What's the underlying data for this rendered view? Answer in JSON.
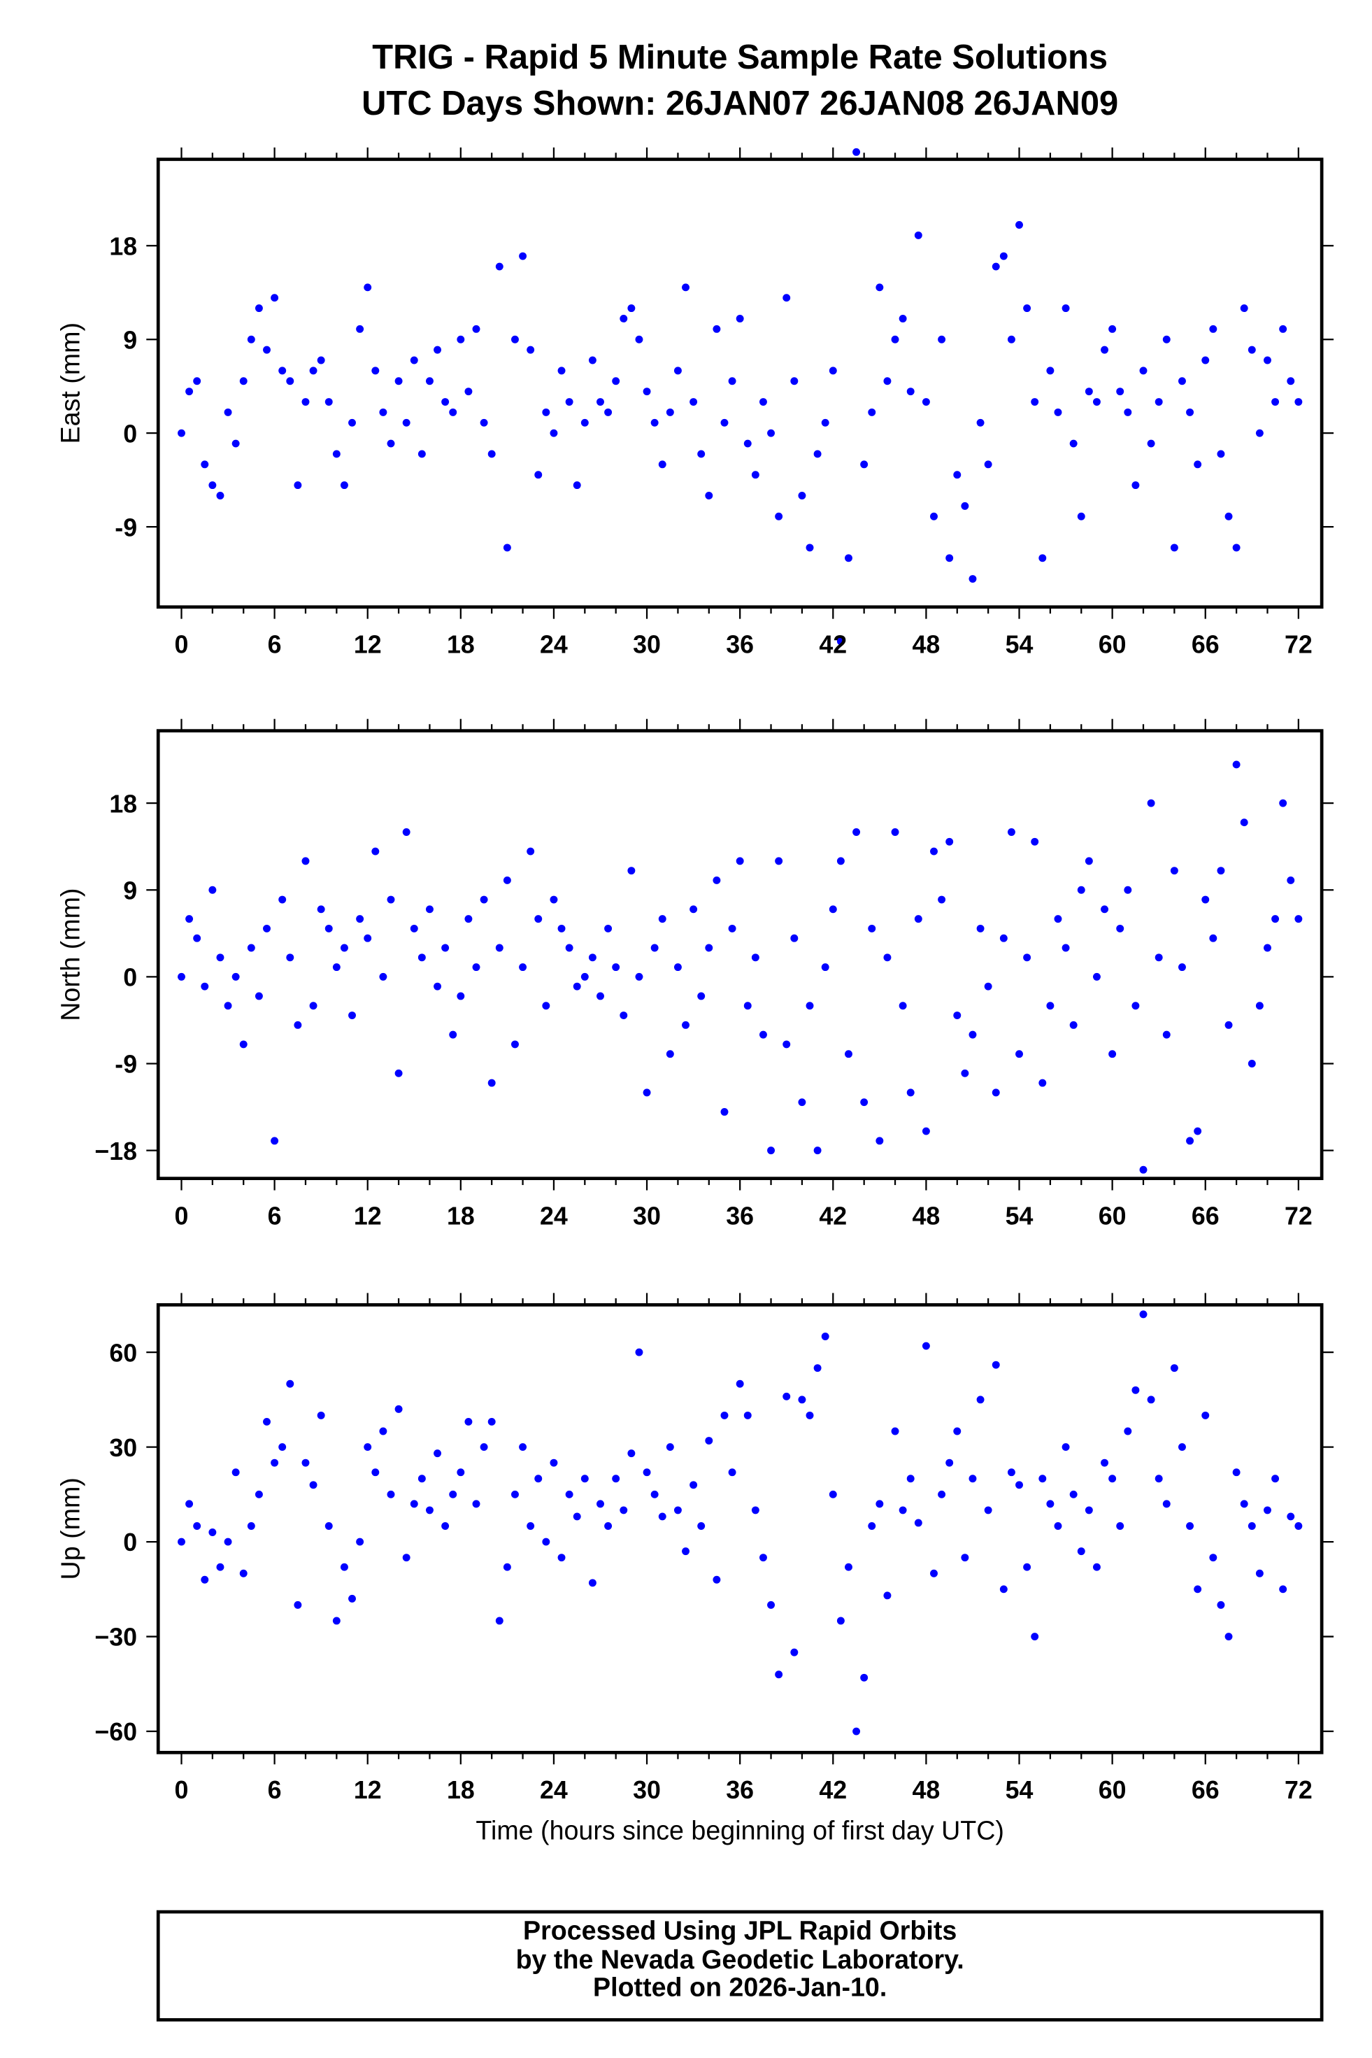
{
  "title_line1": "TRIG - Rapid 5 Minute Sample Rate Solutions",
  "title_line2": "UTC Days Shown:  26JAN07 26JAN08 26JAN09",
  "footer": {
    "line1": "Processed Using JPL Rapid Orbits",
    "line2": "by the Nevada Geodetic Laboratory.",
    "line3": "Plotted on 2026-Jan-10."
  },
  "colors": {
    "points": "#0000ff",
    "frame": "#000000"
  },
  "chart_data": [
    {
      "type": "scatter",
      "ylabel": "East (mm)",
      "xlabel": "",
      "xlim": [
        -1.5,
        73.5
      ],
      "ylim": [
        -16.7,
        26.3
      ],
      "xticks": [
        0,
        6,
        12,
        18,
        24,
        30,
        36,
        42,
        48,
        54,
        60,
        66,
        72
      ],
      "xtick_labels": [
        "0",
        "6",
        "12",
        "18",
        "24",
        "30",
        "36",
        "42",
        "48",
        "54",
        "60",
        "66",
        "72"
      ],
      "yticks": [
        -9,
        0,
        9,
        18
      ],
      "ytick_labels": [
        "-9",
        "0",
        "9",
        "18"
      ],
      "x_step_hours": 0.5,
      "values": [
        0,
        4,
        5,
        -3,
        -5,
        -6,
        2,
        -1,
        5,
        9,
        12,
        8,
        13,
        6,
        5,
        -5,
        3,
        6,
        7,
        3,
        -2,
        -5,
        1,
        10,
        14,
        6,
        2,
        -1,
        5,
        1,
        7,
        -2,
        5,
        8,
        3,
        2,
        9,
        4,
        10,
        1,
        -2,
        16,
        -11,
        9,
        17,
        8,
        -4,
        2,
        0,
        6,
        3,
        -5,
        1,
        7,
        3,
        2,
        5,
        11,
        12,
        9,
        4,
        1,
        -3,
        2,
        6,
        14,
        3,
        -2,
        -6,
        10,
        1,
        5,
        11,
        -1,
        -4,
        3,
        0,
        -8,
        13,
        5,
        -6,
        -11,
        -2,
        1,
        6,
        -20,
        -12,
        27,
        -3,
        2,
        14,
        5,
        9,
        11,
        4,
        19,
        3,
        -8,
        9,
        -12,
        -4,
        -7,
        -14,
        1,
        -3,
        16,
        17,
        9,
        20,
        12,
        3,
        -12,
        6,
        2,
        12,
        -1,
        -8,
        4,
        3,
        8,
        10,
        4,
        2,
        -5,
        6,
        -1,
        3,
        9,
        -11,
        5,
        2,
        -3,
        7,
        10,
        -2,
        -8,
        -11,
        12,
        8,
        0,
        7,
        3,
        10,
        5,
        3
      ]
    },
    {
      "type": "scatter",
      "ylabel": "North (mm)",
      "xlabel": "",
      "xlim": [
        -1.5,
        73.5
      ],
      "ylim": [
        -20.9,
        25.5
      ],
      "xticks": [
        0,
        6,
        12,
        18,
        24,
        30,
        36,
        42,
        48,
        54,
        60,
        66,
        72
      ],
      "xtick_labels": [
        "0",
        "6",
        "12",
        "18",
        "24",
        "30",
        "36",
        "42",
        "48",
        "54",
        "60",
        "66",
        "72"
      ],
      "yticks": [
        -18,
        -9,
        0,
        9,
        18
      ],
      "ytick_labels": [
        "−18",
        "-9",
        "0",
        "9",
        "18"
      ],
      "x_step_hours": 0.5,
      "values": [
        0,
        6,
        4,
        -1,
        9,
        2,
        -3,
        0,
        -7,
        3,
        -2,
        5,
        -17,
        8,
        2,
        -5,
        12,
        -3,
        7,
        5,
        1,
        3,
        -4,
        6,
        4,
        13,
        0,
        8,
        -10,
        15,
        5,
        2,
        7,
        -1,
        3,
        -6,
        -2,
        6,
        1,
        8,
        -11,
        3,
        10,
        -7,
        1,
        13,
        6,
        -3,
        8,
        5,
        3,
        -1,
        0,
        2,
        -2,
        5,
        1,
        -4,
        11,
        0,
        -12,
        3,
        6,
        -8,
        1,
        -5,
        7,
        -2,
        3,
        10,
        -14,
        5,
        12,
        -3,
        2,
        -6,
        -18,
        12,
        -7,
        4,
        -13,
        -3,
        -18,
        1,
        7,
        12,
        -8,
        15,
        -13,
        5,
        -17,
        2,
        15,
        -3,
        -12,
        6,
        -16,
        13,
        8,
        14,
        -4,
        -10,
        -6,
        5,
        -1,
        -12,
        4,
        15,
        -8,
        2,
        14,
        -11,
        -3,
        6,
        3,
        -5,
        9,
        12,
        0,
        7,
        -8,
        5,
        9,
        -3,
        -20,
        18,
        2,
        -6,
        11,
        1,
        -17,
        -16,
        8,
        4,
        11,
        -5,
        22,
        16,
        -9,
        -3,
        3,
        6,
        18,
        10,
        6
      ]
    },
    {
      "type": "scatter",
      "ylabel": "Up (mm)",
      "xlabel": "Time (hours since beginning of first day UTC)",
      "xlim": [
        -1.5,
        73.5
      ],
      "ylim": [
        -66.7,
        75
      ],
      "xticks": [
        0,
        6,
        12,
        18,
        24,
        30,
        36,
        42,
        48,
        54,
        60,
        66,
        72
      ],
      "xtick_labels": [
        "0",
        "6",
        "12",
        "18",
        "24",
        "30",
        "36",
        "42",
        "48",
        "54",
        "60",
        "66",
        "72"
      ],
      "yticks": [
        -60,
        -30,
        0,
        30,
        60
      ],
      "ytick_labels": [
        "−60",
        "−30",
        "0",
        "30",
        "60"
      ],
      "x_step_hours": 0.5,
      "values": [
        0,
        12,
        5,
        -12,
        3,
        -8,
        0,
        22,
        -10,
        5,
        15,
        38,
        25,
        30,
        50,
        -20,
        25,
        18,
        40,
        5,
        -25,
        -8,
        -18,
        0,
        30,
        22,
        35,
        15,
        42,
        -5,
        12,
        20,
        10,
        28,
        5,
        15,
        22,
        38,
        12,
        30,
        38,
        -25,
        -8,
        15,
        30,
        5,
        20,
        0,
        25,
        -5,
        15,
        8,
        20,
        -13,
        12,
        5,
        20,
        10,
        28,
        60,
        22,
        15,
        8,
        30,
        10,
        -3,
        18,
        5,
        32,
        -12,
        40,
        22,
        50,
        40,
        10,
        -5,
        -20,
        -42,
        46,
        -35,
        45,
        40,
        55,
        65,
        15,
        -25,
        -8,
        -60,
        -43,
        5,
        12,
        -17,
        35,
        10,
        20,
        6,
        62,
        -10,
        15,
        25,
        35,
        -5,
        20,
        45,
        10,
        56,
        -15,
        22,
        18,
        -8,
        -30,
        20,
        12,
        5,
        30,
        15,
        -3,
        10,
        -8,
        25,
        20,
        5,
        35,
        48,
        72,
        45,
        20,
        12,
        55,
        30,
        5,
        -15,
        40,
        -5,
        -20,
        -30,
        22,
        12,
        5,
        -10,
        10,
        20,
        -15,
        8,
        5
      ]
    }
  ]
}
